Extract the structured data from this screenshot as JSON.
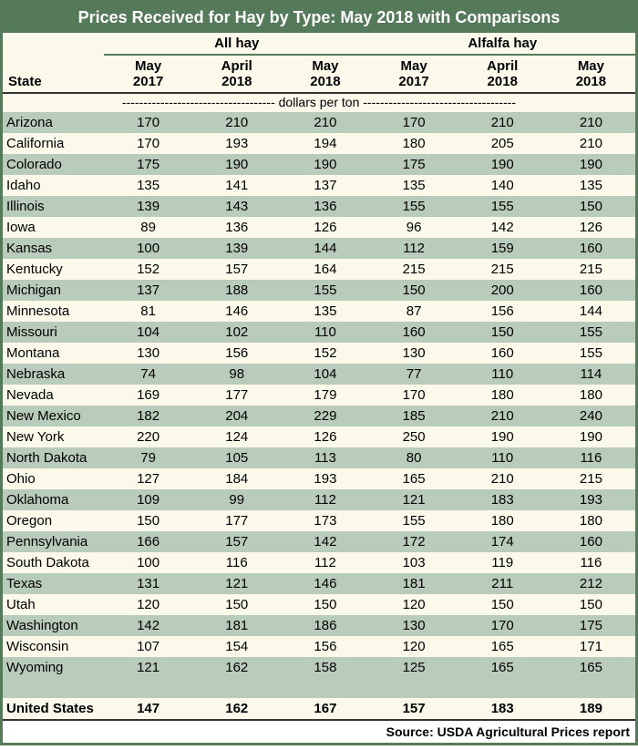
{
  "title": "Prices Received for Hay by Type: May 2018 with Comparisons",
  "groups": [
    "All hay",
    "Alfalfa hay"
  ],
  "state_header": "State",
  "periods": [
    {
      "month": "May",
      "year": "2017"
    },
    {
      "month": "April",
      "year": "2018"
    },
    {
      "month": "May",
      "year": "2018"
    }
  ],
  "units_label": "dollars per ton",
  "rows": [
    {
      "state": "Arizona",
      "all": [
        170,
        210,
        210
      ],
      "alfalfa": [
        170,
        210,
        210
      ]
    },
    {
      "state": "California",
      "all": [
        170,
        193,
        194
      ],
      "alfalfa": [
        180,
        205,
        210
      ]
    },
    {
      "state": "Colorado",
      "all": [
        175,
        190,
        190
      ],
      "alfalfa": [
        175,
        190,
        190
      ]
    },
    {
      "state": "Idaho",
      "all": [
        135,
        141,
        137
      ],
      "alfalfa": [
        135,
        140,
        135
      ]
    },
    {
      "state": "Illinois",
      "all": [
        139,
        143,
        136
      ],
      "alfalfa": [
        155,
        155,
        150
      ]
    },
    {
      "state": "Iowa",
      "all": [
        89,
        136,
        126
      ],
      "alfalfa": [
        96,
        142,
        126
      ]
    },
    {
      "state": "Kansas",
      "all": [
        100,
        139,
        144
      ],
      "alfalfa": [
        112,
        159,
        160
      ]
    },
    {
      "state": "Kentucky",
      "all": [
        152,
        157,
        164
      ],
      "alfalfa": [
        215,
        215,
        215
      ]
    },
    {
      "state": "Michigan",
      "all": [
        137,
        188,
        155
      ],
      "alfalfa": [
        150,
        200,
        160
      ]
    },
    {
      "state": "Minnesota",
      "all": [
        81,
        146,
        135
      ],
      "alfalfa": [
        87,
        156,
        144
      ]
    },
    {
      "state": "Missouri",
      "all": [
        104,
        102,
        110
      ],
      "alfalfa": [
        160,
        150,
        155
      ]
    },
    {
      "state": "Montana",
      "all": [
        130,
        156,
        152
      ],
      "alfalfa": [
        130,
        160,
        155
      ]
    },
    {
      "state": "Nebraska",
      "all": [
        74,
        98,
        104
      ],
      "alfalfa": [
        77,
        110,
        114
      ]
    },
    {
      "state": "Nevada",
      "all": [
        169,
        177,
        179
      ],
      "alfalfa": [
        170,
        180,
        180
      ]
    },
    {
      "state": "New Mexico",
      "all": [
        182,
        204,
        229
      ],
      "alfalfa": [
        185,
        210,
        240
      ]
    },
    {
      "state": "New York",
      "all": [
        220,
        124,
        126
      ],
      "alfalfa": [
        250,
        190,
        190
      ]
    },
    {
      "state": "North Dakota",
      "all": [
        79,
        105,
        113
      ],
      "alfalfa": [
        80,
        110,
        116
      ]
    },
    {
      "state": "Ohio",
      "all": [
        127,
        184,
        193
      ],
      "alfalfa": [
        165,
        210,
        215
      ]
    },
    {
      "state": "Oklahoma",
      "all": [
        109,
        99,
        112
      ],
      "alfalfa": [
        121,
        183,
        193
      ]
    },
    {
      "state": "Oregon",
      "all": [
        150,
        177,
        173
      ],
      "alfalfa": [
        155,
        180,
        180
      ]
    },
    {
      "state": "Pennsylvania",
      "all": [
        166,
        157,
        142
      ],
      "alfalfa": [
        172,
        174,
        160
      ]
    },
    {
      "state": "South Dakota",
      "all": [
        100,
        116,
        112
      ],
      "alfalfa": [
        103,
        119,
        116
      ]
    },
    {
      "state": "Texas",
      "all": [
        131,
        121,
        146
      ],
      "alfalfa": [
        181,
        211,
        212
      ]
    },
    {
      "state": "Utah",
      "all": [
        120,
        150,
        150
      ],
      "alfalfa": [
        120,
        150,
        150
      ]
    },
    {
      "state": "Washington",
      "all": [
        142,
        181,
        186
      ],
      "alfalfa": [
        130,
        170,
        175
      ]
    },
    {
      "state": "Wisconsin",
      "all": [
        107,
        154,
        156
      ],
      "alfalfa": [
        120,
        165,
        171
      ]
    },
    {
      "state": "Wyoming",
      "all": [
        121,
        162,
        158
      ],
      "alfalfa": [
        125,
        165,
        165
      ]
    }
  ],
  "total": {
    "label": "United States",
    "all": [
      147,
      162,
      167
    ],
    "alfalfa": [
      157,
      183,
      189
    ]
  },
  "source": "Source: USDA Agricultural Prices report",
  "colors": {
    "border": "#557a5a",
    "header_bg": "#557a5a",
    "header_text": "#ffffff",
    "row_even": "#b9cbbb",
    "row_odd": "#fbf9ea"
  }
}
